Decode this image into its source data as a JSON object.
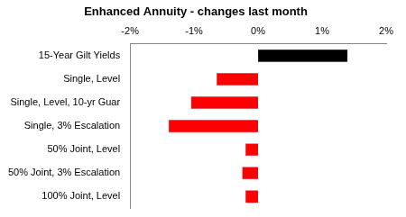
{
  "chart_data": {
    "type": "bar",
    "orientation": "horizontal",
    "title": "Enhanced Annuity - changes last month",
    "categories": [
      "15-Year Gilt Yields",
      "Single, Level",
      "Single, Level, 10-yr Guar",
      "Single, 3% Escalation",
      "50% Joint, Level",
      "50% Joint, 3% Escalation",
      "100% Joint, Level"
    ],
    "values": [
      1.4,
      -0.65,
      -1.05,
      -1.4,
      -0.2,
      -0.25,
      -0.2
    ],
    "colors": [
      "#000000",
      "#ff0000",
      "#ff0000",
      "#ff0000",
      "#ff0000",
      "#ff0000",
      "#ff0000"
    ],
    "xlim": [
      -2,
      2
    ],
    "xticks": [
      {
        "value": -2,
        "label": "-2%"
      },
      {
        "value": -1,
        "label": "-1%"
      },
      {
        "value": 0,
        "label": "0%"
      },
      {
        "value": 1,
        "label": "1%"
      },
      {
        "value": 2,
        "label": "2%"
      }
    ],
    "grid": false
  }
}
